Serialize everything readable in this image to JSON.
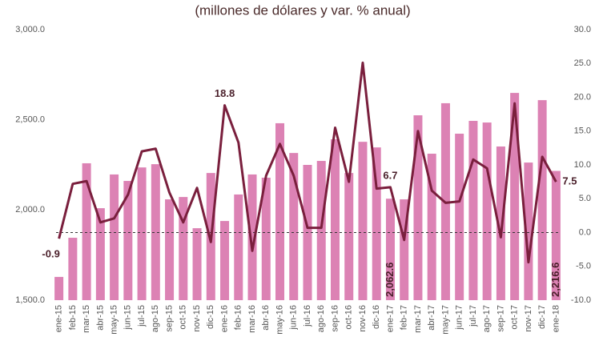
{
  "chart_data": {
    "type": "bar-line",
    "title": "(millones de dólares y var. % anual)",
    "categories": [
      "ene-15",
      "feb-15",
      "mar-15",
      "abr-15",
      "may-15",
      "jun-15",
      "jul-15",
      "ago-15",
      "sep-15",
      "oct-15",
      "nov-15",
      "dic-15",
      "ene-16",
      "feb-16",
      "mar-16",
      "abr-16",
      "may-16",
      "jun-16",
      "jul-16",
      "ago-16",
      "sep-16",
      "oct-16",
      "nov-16",
      "dic-16",
      "ene-17",
      "feb-17",
      "mar-17",
      "abr-17",
      "may-17",
      "jun-17",
      "jul-17",
      "ago-17",
      "sep-17",
      "oct-17",
      "nov-17",
      "dic-17",
      "ene-18"
    ],
    "series": [
      {
        "type": "bar",
        "color": "#dc82b4",
        "values": [
          1629,
          1846,
          2259,
          2010,
          2197,
          2161,
          2236,
          2254,
          2059,
          2072,
          1899,
          2205,
          1939,
          2086,
          2197,
          2179,
          2481,
          2316,
          2250,
          2272,
          2392,
          2205,
          2378,
          2347,
          2062.6,
          2059,
          2525,
          2312,
          2592,
          2423,
          2494,
          2485,
          2352,
          2649,
          2263,
          2609,
          2216.6
        ],
        "value_labels": [
          null,
          null,
          null,
          null,
          null,
          null,
          null,
          null,
          null,
          null,
          null,
          null,
          null,
          null,
          null,
          null,
          null,
          null,
          null,
          null,
          null,
          null,
          null,
          null,
          "2,062.6",
          null,
          null,
          null,
          null,
          null,
          null,
          null,
          null,
          null,
          null,
          null,
          "2,216.6"
        ]
      },
      {
        "type": "line",
        "axis": "y2",
        "color": "#7a1f3d",
        "values": [
          -0.9,
          7.2,
          7.6,
          1.5,
          2.1,
          5.6,
          12.0,
          12.4,
          5.9,
          1.5,
          6.6,
          -1.4,
          18.8,
          13.3,
          -2.7,
          8.4,
          13.1,
          8.4,
          0.7,
          0.7,
          15.5,
          7.5,
          25.1,
          6.5,
          6.7,
          -1.1,
          15.0,
          6.2,
          4.4,
          4.6,
          10.8,
          9.5,
          -0.7,
          19.1,
          -4.4,
          11.2,
          7.5
        ],
        "value_labels": [
          "-0.9",
          null,
          null,
          null,
          null,
          null,
          null,
          null,
          null,
          null,
          null,
          null,
          "18.8",
          null,
          null,
          null,
          null,
          null,
          null,
          null,
          null,
          null,
          null,
          null,
          "6.7",
          null,
          null,
          null,
          null,
          null,
          null,
          null,
          null,
          null,
          null,
          null,
          "7.5"
        ]
      }
    ],
    "ylim": [
      1500,
      3000
    ],
    "yticks": [
      {
        "value": 1500,
        "label": "1,500.0"
      },
      {
        "value": 2000,
        "label": "2,000.0"
      },
      {
        "value": 2500,
        "label": "2,500.0"
      },
      {
        "value": 3000,
        "label": "3,000.0"
      }
    ],
    "y2lim": [
      -10,
      30
    ],
    "y2ticks": [
      {
        "value": -10,
        "label": "-10.0"
      },
      {
        "value": -5,
        "label": "-5.0"
      },
      {
        "value": 0,
        "label": "0.0"
      },
      {
        "value": 5,
        "label": "5.0"
      },
      {
        "value": 10,
        "label": "10.0"
      },
      {
        "value": 15,
        "label": "15.0"
      },
      {
        "value": 20,
        "label": "20.0"
      },
      {
        "value": 25,
        "label": "25.0"
      },
      {
        "value": 30,
        "label": "30.0"
      }
    ],
    "zero_line": true
  }
}
